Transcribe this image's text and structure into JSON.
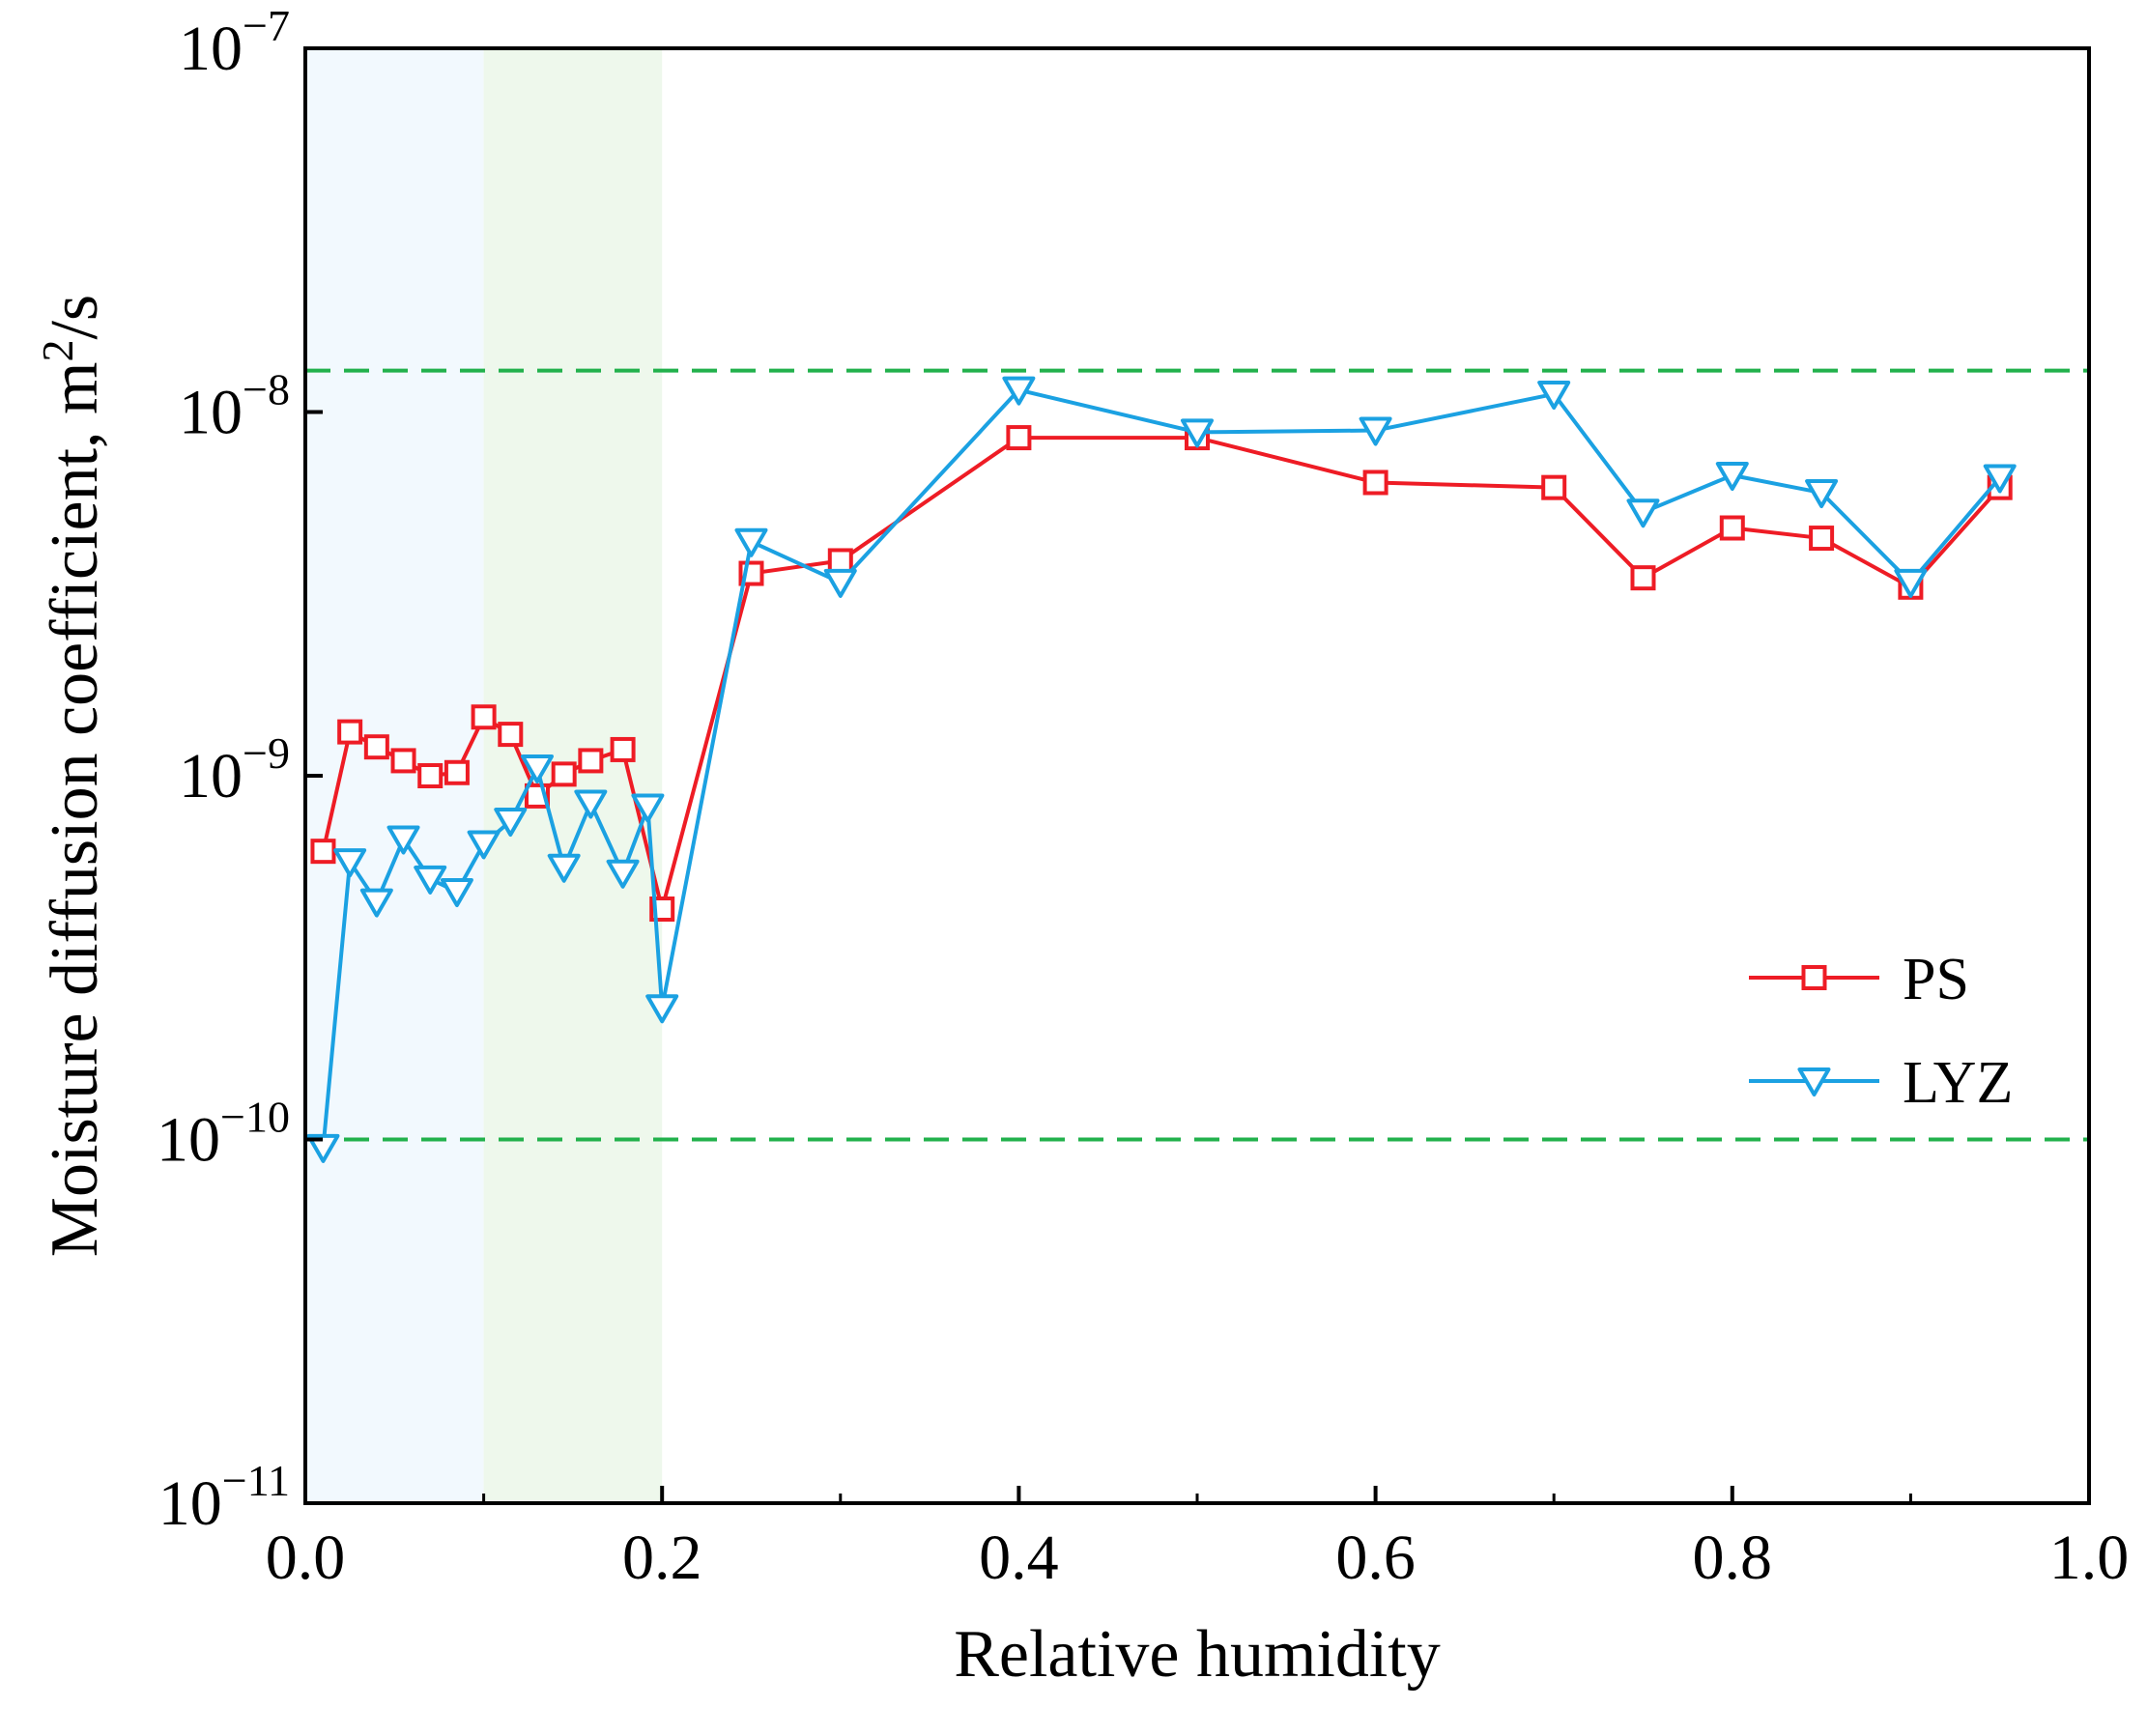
{
  "chart_data": {
    "type": "line",
    "xlabel": "Relative humidity",
    "ylabel": "Moisture diffusion coefficient, m²/s",
    "ylabel_parts": {
      "main": "Moisture diffusion coefficient, m",
      "sup": "2",
      "tail": "/s"
    },
    "xlim": [
      0.0,
      1.0
    ],
    "ylim_exponent": [
      -11,
      -7
    ],
    "y_scale": "log",
    "x_ticks": [
      "0.0",
      "0.2",
      "0.4",
      "0.6",
      "0.8",
      "1.0"
    ],
    "y_ticks": [
      {
        "base": "10",
        "exp": "−7",
        "value_exp": -7
      },
      {
        "base": "10",
        "exp": "−8",
        "value_exp": -8
      },
      {
        "base": "10",
        "exp": "−9",
        "value_exp": -9
      },
      {
        "base": "10",
        "exp": "−10",
        "value_exp": -10
      },
      {
        "base": "10",
        "exp": "−11",
        "value_exp": -11
      }
    ],
    "shaded_regions": [
      {
        "x": [
          0.0,
          0.1
        ],
        "color": "#f2f9fe"
      },
      {
        "x": [
          0.1,
          0.2
        ],
        "color": "#eef8ec"
      }
    ],
    "reference_lines": [
      {
        "y": 1.3e-08,
        "color": "#22b14c",
        "style": "dashed"
      },
      {
        "y": 1e-10,
        "color": "#22b14c",
        "style": "dashed"
      }
    ],
    "series": [
      {
        "name": "PS",
        "color": "#ee1c25",
        "marker": "square",
        "points": [
          [
            0.01,
            6.2e-10
          ],
          [
            0.025,
            1.32e-09
          ],
          [
            0.04,
            1.2e-09
          ],
          [
            0.055,
            1.1e-09
          ],
          [
            0.07,
            1e-09
          ],
          [
            0.085,
            1.02e-09
          ],
          [
            0.1,
            1.45e-09
          ],
          [
            0.115,
            1.3e-09
          ],
          [
            0.13,
            8.8e-10
          ],
          [
            0.145,
            1.01e-09
          ],
          [
            0.16,
            1.1e-09
          ],
          [
            0.178,
            1.18e-09
          ],
          [
            0.2,
            4.3e-10
          ],
          [
            0.25,
            3.6e-09
          ],
          [
            0.3,
            3.9e-09
          ],
          [
            0.4,
            8.5e-09
          ],
          [
            0.5,
            8.5e-09
          ],
          [
            0.6,
            6.4e-09
          ],
          [
            0.7,
            6.2e-09
          ],
          [
            0.75,
            3.5e-09
          ],
          [
            0.8,
            4.8e-09
          ],
          [
            0.85,
            4.5e-09
          ],
          [
            0.9,
            3.3e-09
          ],
          [
            0.95,
            6.2e-09
          ]
        ]
      },
      {
        "name": "LYZ",
        "color": "#1ba1e2",
        "marker": "triangle-down",
        "points": [
          [
            0.01,
            9.5e-11
          ],
          [
            0.025,
            5.8e-10
          ],
          [
            0.04,
            4.5e-10
          ],
          [
            0.055,
            6.7e-10
          ],
          [
            0.07,
            5.2e-10
          ],
          [
            0.085,
            4.8e-10
          ],
          [
            0.1,
            6.5e-10
          ],
          [
            0.115,
            7.5e-10
          ],
          [
            0.13,
            1.05e-09
          ],
          [
            0.145,
            5.6e-10
          ],
          [
            0.16,
            8.4e-10
          ],
          [
            0.178,
            5.4e-10
          ],
          [
            0.192,
            8.2e-10
          ],
          [
            0.2,
            2.3e-10
          ],
          [
            0.25,
            4.4e-09
          ],
          [
            0.3,
            3.4e-09
          ],
          [
            0.4,
            1.15e-08
          ],
          [
            0.5,
            8.8e-09
          ],
          [
            0.6,
            8.9e-09
          ],
          [
            0.7,
            1.12e-08
          ],
          [
            0.75,
            5.3e-09
          ],
          [
            0.8,
            6.7e-09
          ],
          [
            0.85,
            6e-09
          ],
          [
            0.9,
            3.4e-09
          ],
          [
            0.95,
            6.6e-09
          ]
        ]
      }
    ],
    "legend": {
      "position": "middle-right",
      "entries": [
        "PS",
        "LYZ"
      ]
    }
  }
}
